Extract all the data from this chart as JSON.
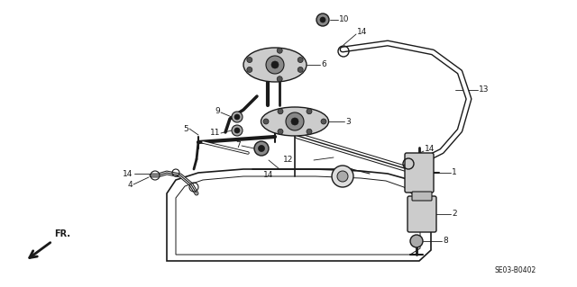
{
  "bg_color": "#ffffff",
  "lc": "#1a1a1a",
  "diagram_code": "SE03-B0402",
  "fs_label": 6.5,
  "fs_small": 5.5
}
